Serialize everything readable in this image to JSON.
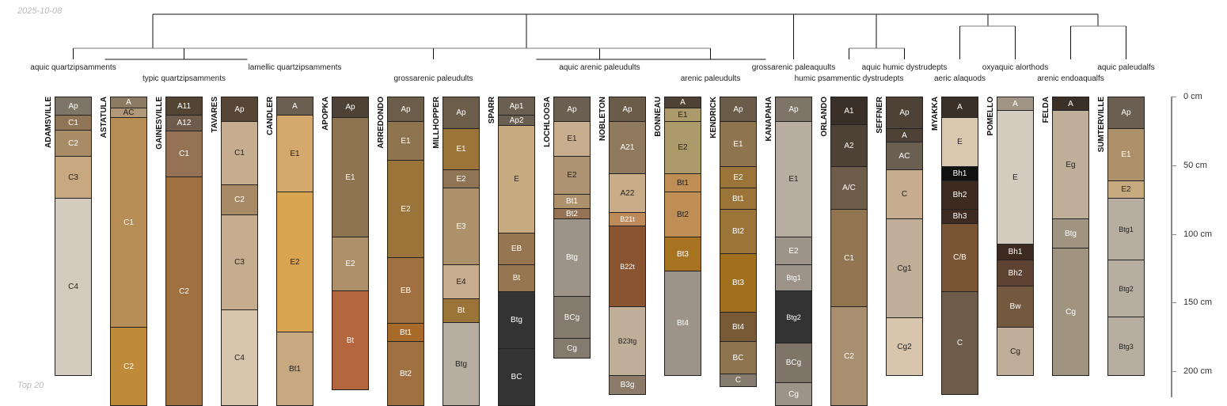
{
  "date": "2025-10-08",
  "footer": "Top 20",
  "depth_axis": {
    "unit": "cm",
    "ticks": [
      {
        "value": 0,
        "label": "0 cm"
      },
      {
        "value": 50,
        "label": "50 cm"
      },
      {
        "value": 100,
        "label": "100 cm"
      },
      {
        "value": 150,
        "label": "150 cm"
      },
      {
        "value": 200,
        "label": "200 cm"
      }
    ]
  },
  "taxa": [
    {
      "label": "aquic quartzipsamments",
      "profiles": [
        0
      ],
      "row": 0
    },
    {
      "label": "typic quartzipsamments",
      "profiles": [
        1,
        2,
        3
      ],
      "row": 1
    },
    {
      "label": "lamellic quartzipsamments",
      "profiles": [
        4
      ],
      "row": 0
    },
    {
      "label": "grossarenic paleudults",
      "profiles": [
        5,
        6,
        7,
        8
      ],
      "row": 1
    },
    {
      "label": "aquic arenic paleudults",
      "profiles": [
        9,
        10
      ],
      "row": 0
    },
    {
      "label": "arenic paleudults",
      "profiles": [
        11,
        12
      ],
      "row": 1
    },
    {
      "label": "grossarenic paleaquults",
      "profiles": [
        13
      ],
      "row": 0
    },
    {
      "label": "humic psammentic dystrudepts",
      "profiles": [
        14
      ],
      "row": 1
    },
    {
      "label": "aquic humic dystrudepts",
      "profiles": [
        15
      ],
      "row": 0
    },
    {
      "label": "aeric alaquods",
      "profiles": [
        16
      ],
      "row": 1
    },
    {
      "label": "oxyaquic alorthods",
      "profiles": [
        17
      ],
      "row": 0
    },
    {
      "label": "arenic endoaqualfs",
      "profiles": [
        18
      ],
      "row": 1
    },
    {
      "label": "aquic paleudalfs",
      "profiles": [
        19
      ],
      "row": 0
    }
  ],
  "profiles": [
    {
      "name": "ADAMSVILLE",
      "horizons": [
        [
          "Ap",
          0,
          13,
          "#7e7468"
        ],
        [
          "C1",
          13,
          24,
          "#8f7456"
        ],
        [
          "C2",
          24,
          43,
          "#a88c68"
        ],
        [
          "C3",
          43,
          74,
          "#c8a880"
        ],
        [
          "C4",
          74,
          203,
          "#d3cbbd"
        ]
      ]
    },
    {
      "name": "ASTATULA",
      "horizons": [
        [
          "A",
          0,
          8,
          "#8c7a62"
        ],
        [
          "AC",
          8,
          15,
          "#b09878"
        ],
        [
          "C1",
          15,
          168,
          "#b68e55"
        ],
        [
          "C2",
          168,
          225,
          "#bf8a3a"
        ]
      ]
    },
    {
      "name": "GAINESVILLE",
      "horizons": [
        [
          "A11",
          0,
          13,
          "#544433"
        ],
        [
          "A12",
          13,
          25,
          "#6e5c4c"
        ],
        [
          "C1",
          25,
          58,
          "#957254"
        ],
        [
          "C2",
          58,
          225,
          "#a07040"
        ]
      ]
    },
    {
      "name": "TAVARES",
      "horizons": [
        [
          "Ap",
          0,
          18,
          "#574535"
        ],
        [
          "C1",
          18,
          64,
          "#c7ad8f"
        ],
        [
          "C2",
          64,
          86,
          "#a78a65"
        ],
        [
          "C3",
          86,
          155,
          "#c7ad8f"
        ],
        [
          "C4",
          155,
          225,
          "#d8c5ad"
        ]
      ]
    },
    {
      "name": "CANDLER",
      "horizons": [
        [
          "A",
          0,
          13,
          "#6b5f52"
        ],
        [
          "E1",
          13,
          69,
          "#d5a86e"
        ],
        [
          "E2",
          69,
          171,
          "#d9a550"
        ],
        [
          "Bt1",
          171,
          225,
          "#c8a880"
        ]
      ]
    },
    {
      "name": "APOPKA",
      "horizons": [
        [
          "Ap",
          0,
          15,
          "#4e4236"
        ],
        [
          "E1",
          15,
          102,
          "#8e7450"
        ],
        [
          "E2",
          102,
          141,
          "#ae916a"
        ],
        [
          "Bt",
          141,
          213,
          "#b4663e"
        ]
      ]
    },
    {
      "name": "ARREDONDO",
      "horizons": [
        [
          "Ap",
          0,
          18,
          "#6c5c4a"
        ],
        [
          "E1",
          18,
          46,
          "#8f7450"
        ],
        [
          "E2",
          46,
          117,
          "#9a7438"
        ],
        [
          "EB",
          117,
          165,
          "#a07040"
        ],
        [
          "Bt1",
          165,
          178,
          "#a86a28"
        ],
        [
          "Bt2",
          178,
          225,
          "#a07040"
        ]
      ]
    },
    {
      "name": "MILLHOPPER",
      "horizons": [
        [
          "Ap",
          0,
          23,
          "#6c5c4a"
        ],
        [
          "E1",
          23,
          53,
          "#9a7438"
        ],
        [
          "E2",
          53,
          66,
          "#8f7456"
        ],
        [
          "E3",
          66,
          122,
          "#ad916a"
        ],
        [
          "E4",
          122,
          147,
          "#c8ad8e"
        ],
        [
          "Bt",
          147,
          164,
          "#9a7438"
        ],
        [
          "Btg",
          164,
          225,
          "#b7ada0"
        ]
      ]
    },
    {
      "name": "SPARR",
      "horizons": [
        [
          "Ap1",
          0,
          13,
          "#6b5f52"
        ],
        [
          "Ap2",
          13,
          21,
          "#6b5f52"
        ],
        [
          "E",
          21,
          99,
          "#c8aa80"
        ],
        [
          "EB",
          99,
          122,
          "#957650"
        ],
        [
          "Bt",
          122,
          142,
          "#957650"
        ],
        [
          "Btg",
          142,
          183,
          "#333333"
        ],
        [
          "BC",
          183,
          225,
          "#333333"
        ]
      ]
    },
    {
      "name": "LOCHLOOSA",
      "horizons": [
        [
          "Ap",
          0,
          18,
          "#6b5f52"
        ],
        [
          "E1",
          18,
          43,
          "#c8ad8e"
        ],
        [
          "E2",
          43,
          71,
          "#ad9372"
        ],
        [
          "Bt1",
          71,
          81,
          "#ad916a"
        ],
        [
          "Bt2",
          81,
          89,
          "#957254"
        ],
        [
          "Btg",
          89,
          145,
          "#9c9488"
        ],
        [
          "BCg",
          145,
          176,
          "#847a6e"
        ],
        [
          "Cg",
          176,
          190,
          "#847a6e"
        ]
      ]
    },
    {
      "name": "NOBLETON",
      "horizons": [
        [
          "Ap",
          0,
          18,
          "#6b5c4a"
        ],
        [
          "A21",
          18,
          56,
          "#8f7a5e"
        ],
        [
          "A22",
          56,
          84,
          "#c8ad88"
        ],
        [
          "B21t",
          84,
          94,
          "#bf8a5a"
        ],
        [
          "B22t",
          94,
          153,
          "#8b5430"
        ],
        [
          "B23tg",
          153,
          203,
          "#bfae98"
        ],
        [
          "B3g",
          203,
          217,
          "#8c7b68"
        ]
      ]
    },
    {
      "name": "BONNEAU",
      "horizons": [
        [
          "A",
          0,
          8,
          "#4e4236"
        ],
        [
          "E1",
          8,
          18,
          "#ad9a6a"
        ],
        [
          "E2",
          18,
          56,
          "#ad9a6a"
        ],
        [
          "Bt1",
          56,
          69,
          "#bf8e55"
        ],
        [
          "Bt2",
          69,
          102,
          "#bf8e55"
        ],
        [
          "Bt3",
          102,
          127,
          "#a87320"
        ],
        [
          "Bt4",
          127,
          203,
          "#9c9488"
        ]
      ]
    },
    {
      "name": "KENDRICK",
      "horizons": [
        [
          "Ap",
          0,
          18,
          "#6b5c4a"
        ],
        [
          "E1",
          18,
          51,
          "#8f7450"
        ],
        [
          "E2",
          51,
          66,
          "#9a7438"
        ],
        [
          "Bt1",
          66,
          82,
          "#9a7438"
        ],
        [
          "Bt2",
          82,
          114,
          "#9a7438"
        ],
        [
          "Bt3",
          114,
          157,
          "#a0701e"
        ],
        [
          "Bt4",
          157,
          178,
          "#785a36"
        ],
        [
          "BC",
          178,
          202,
          "#8f7450"
        ],
        [
          "C",
          202,
          211,
          "#847a6e"
        ]
      ]
    },
    {
      "name": "KANAPAHA",
      "horizons": [
        [
          "Ap",
          0,
          18,
          "#7e7468"
        ],
        [
          "E1",
          18,
          102,
          "#b7ada0"
        ],
        [
          "E2",
          102,
          122,
          "#9c9488"
        ],
        [
          "Btg1",
          122,
          141,
          "#9c9488"
        ],
        [
          "Btg2",
          141,
          179,
          "#333333"
        ],
        [
          "BCg",
          179,
          208,
          "#7e7468"
        ],
        [
          "Cg",
          208,
          225,
          "#9c9488"
        ]
      ]
    },
    {
      "name": "ORLANDO",
      "horizons": [
        [
          "A1",
          0,
          20,
          "#3a3028"
        ],
        [
          "A2",
          20,
          51,
          "#4e4236"
        ],
        [
          "A/C",
          51,
          82,
          "#6e5c4a"
        ],
        [
          "C1",
          82,
          153,
          "#917450"
        ],
        [
          "C2",
          153,
          225,
          "#a88f70"
        ]
      ]
    },
    {
      "name": "SEFFNER",
      "horizons": [
        [
          "Ap",
          0,
          23,
          "#4e4236"
        ],
        [
          "A",
          23,
          33,
          "#4e4236"
        ],
        [
          "AC",
          33,
          53,
          "#6b5f52"
        ],
        [
          "C",
          53,
          89,
          "#c7ad8f"
        ],
        [
          "Cg1",
          89,
          161,
          "#bfae98"
        ],
        [
          "Cg2",
          161,
          203,
          "#d8c5ad"
        ]
      ]
    },
    {
      "name": "MYAKKA",
      "horizons": [
        [
          "A",
          0,
          15,
          "#3a3028"
        ],
        [
          "E",
          15,
          51,
          "#d8c8b0"
        ],
        [
          "Bh1",
          51,
          61,
          "#111111"
        ],
        [
          "Bh2",
          61,
          82,
          "#3d2b22"
        ],
        [
          "Bh3",
          82,
          92,
          "#3d2b22"
        ],
        [
          "C/B",
          92,
          142,
          "#7a5535"
        ],
        [
          "C",
          142,
          217,
          "#6e5c4a"
        ]
      ]
    },
    {
      "name": "POMELLO",
      "horizons": [
        [
          "A",
          0,
          10,
          "#a09485"
        ],
        [
          "E",
          10,
          107,
          "#d3cbbd"
        ],
        [
          "Bh1",
          107,
          119,
          "#3d2b22"
        ],
        [
          "Bh2",
          119,
          138,
          "#5e4232"
        ],
        [
          "Bw",
          138,
          168,
          "#735a3e"
        ],
        [
          "Cg",
          168,
          203,
          "#c0ae98"
        ]
      ]
    },
    {
      "name": "FELDA",
      "horizons": [
        [
          "A",
          0,
          10,
          "#3a3028"
        ],
        [
          "Eg",
          10,
          89,
          "#bfae98"
        ],
        [
          "Btg",
          89,
          110,
          "#a09480"
        ],
        [
          "Cg",
          110,
          203,
          "#a09480"
        ]
      ]
    },
    {
      "name": "SUMTERVILLE",
      "horizons": [
        [
          "Ap",
          0,
          23,
          "#6b5f52"
        ],
        [
          "E1",
          23,
          61,
          "#ad916a"
        ],
        [
          "E2",
          61,
          74,
          "#c8aa80"
        ],
        [
          "Btg1",
          74,
          119,
          "#b7ada0"
        ],
        [
          "Btg2",
          119,
          160,
          "#b7ada0"
        ],
        [
          "Btg3",
          160,
          203,
          "#b7ada0"
        ]
      ]
    }
  ]
}
